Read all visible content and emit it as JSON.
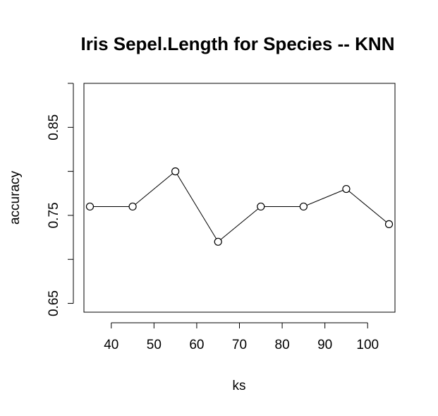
{
  "chart_data": {
    "type": "line",
    "title": "Iris Sepel.Length for Species -- KNN",
    "xlabel": "ks",
    "ylabel": "accuracy",
    "x": [
      35,
      45,
      55,
      65,
      75,
      85,
      95,
      105
    ],
    "series": [
      {
        "values": [
          0.76,
          0.76,
          0.8,
          0.72,
          0.76,
          0.76,
          0.78,
          0.74
        ]
      }
    ],
    "xlim": [
      33.6,
      106.4
    ],
    "ylim": [
      0.64,
      0.9
    ],
    "xticks": [
      40,
      50,
      60,
      70,
      80,
      90,
      100
    ],
    "xtick_labels": [
      "40",
      "50",
      "60",
      "70",
      "80",
      "90",
      "100"
    ],
    "yticks": [
      0.65,
      0.7,
      0.75,
      0.8,
      0.85,
      0.9
    ],
    "ytick_labels": [
      "0.65",
      "",
      "0.75",
      "",
      "0.85",
      ""
    ],
    "markers": "open-circle",
    "grid": false,
    "legend": "none",
    "colors": {
      "line": "#000000",
      "marker_fill": "#ffffff",
      "box": "#000000"
    }
  }
}
